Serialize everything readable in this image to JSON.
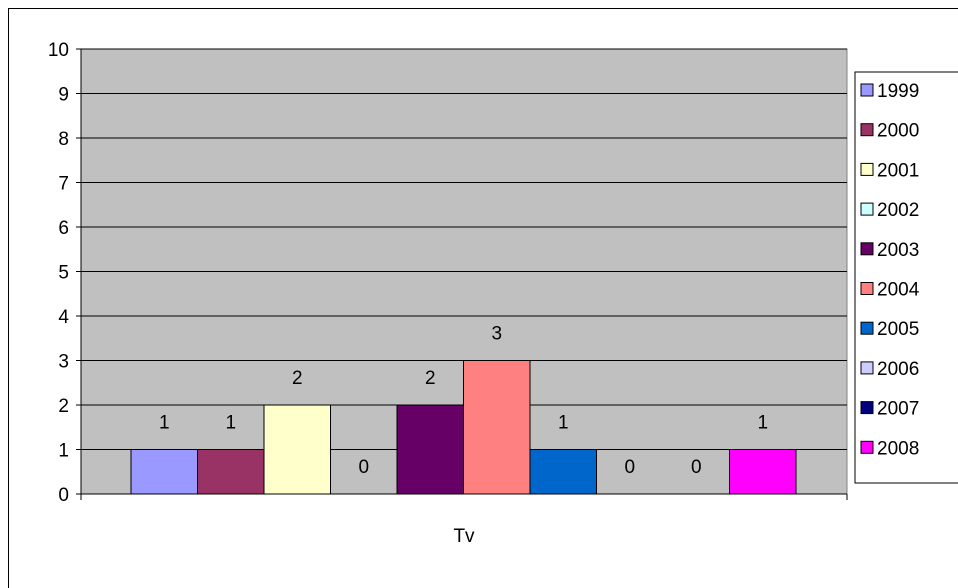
{
  "chart_data": {
    "type": "bar",
    "categories": [
      "Tv"
    ],
    "series": [
      {
        "name": "1999",
        "values": [
          1
        ],
        "color": "#9999ff"
      },
      {
        "name": "2000",
        "values": [
          1
        ],
        "color": "#993366"
      },
      {
        "name": "2001",
        "values": [
          2
        ],
        "color": "#ffffcc"
      },
      {
        "name": "2002",
        "values": [
          0
        ],
        "color": "#ccffff"
      },
      {
        "name": "2003",
        "values": [
          2
        ],
        "color": "#660066"
      },
      {
        "name": "2004",
        "values": [
          3
        ],
        "color": "#ff8080"
      },
      {
        "name": "2005",
        "values": [
          1
        ],
        "color": "#0066cc"
      },
      {
        "name": "2006",
        "values": [
          0
        ],
        "color": "#ccccff"
      },
      {
        "name": "2007",
        "values": [
          0
        ],
        "color": "#000080"
      },
      {
        "name": "2008",
        "values": [
          1
        ],
        "color": "#ff00ff"
      }
    ],
    "y_ticks": [
      "0",
      "1",
      "2",
      "3",
      "4",
      "5",
      "6",
      "7",
      "8",
      "9",
      "10"
    ],
    "ylim": [
      0,
      10
    ],
    "grid": true,
    "legend": "right",
    "plot_background": "#c0c0c0",
    "title": "",
    "xlabel": "",
    "ylabel": ""
  }
}
